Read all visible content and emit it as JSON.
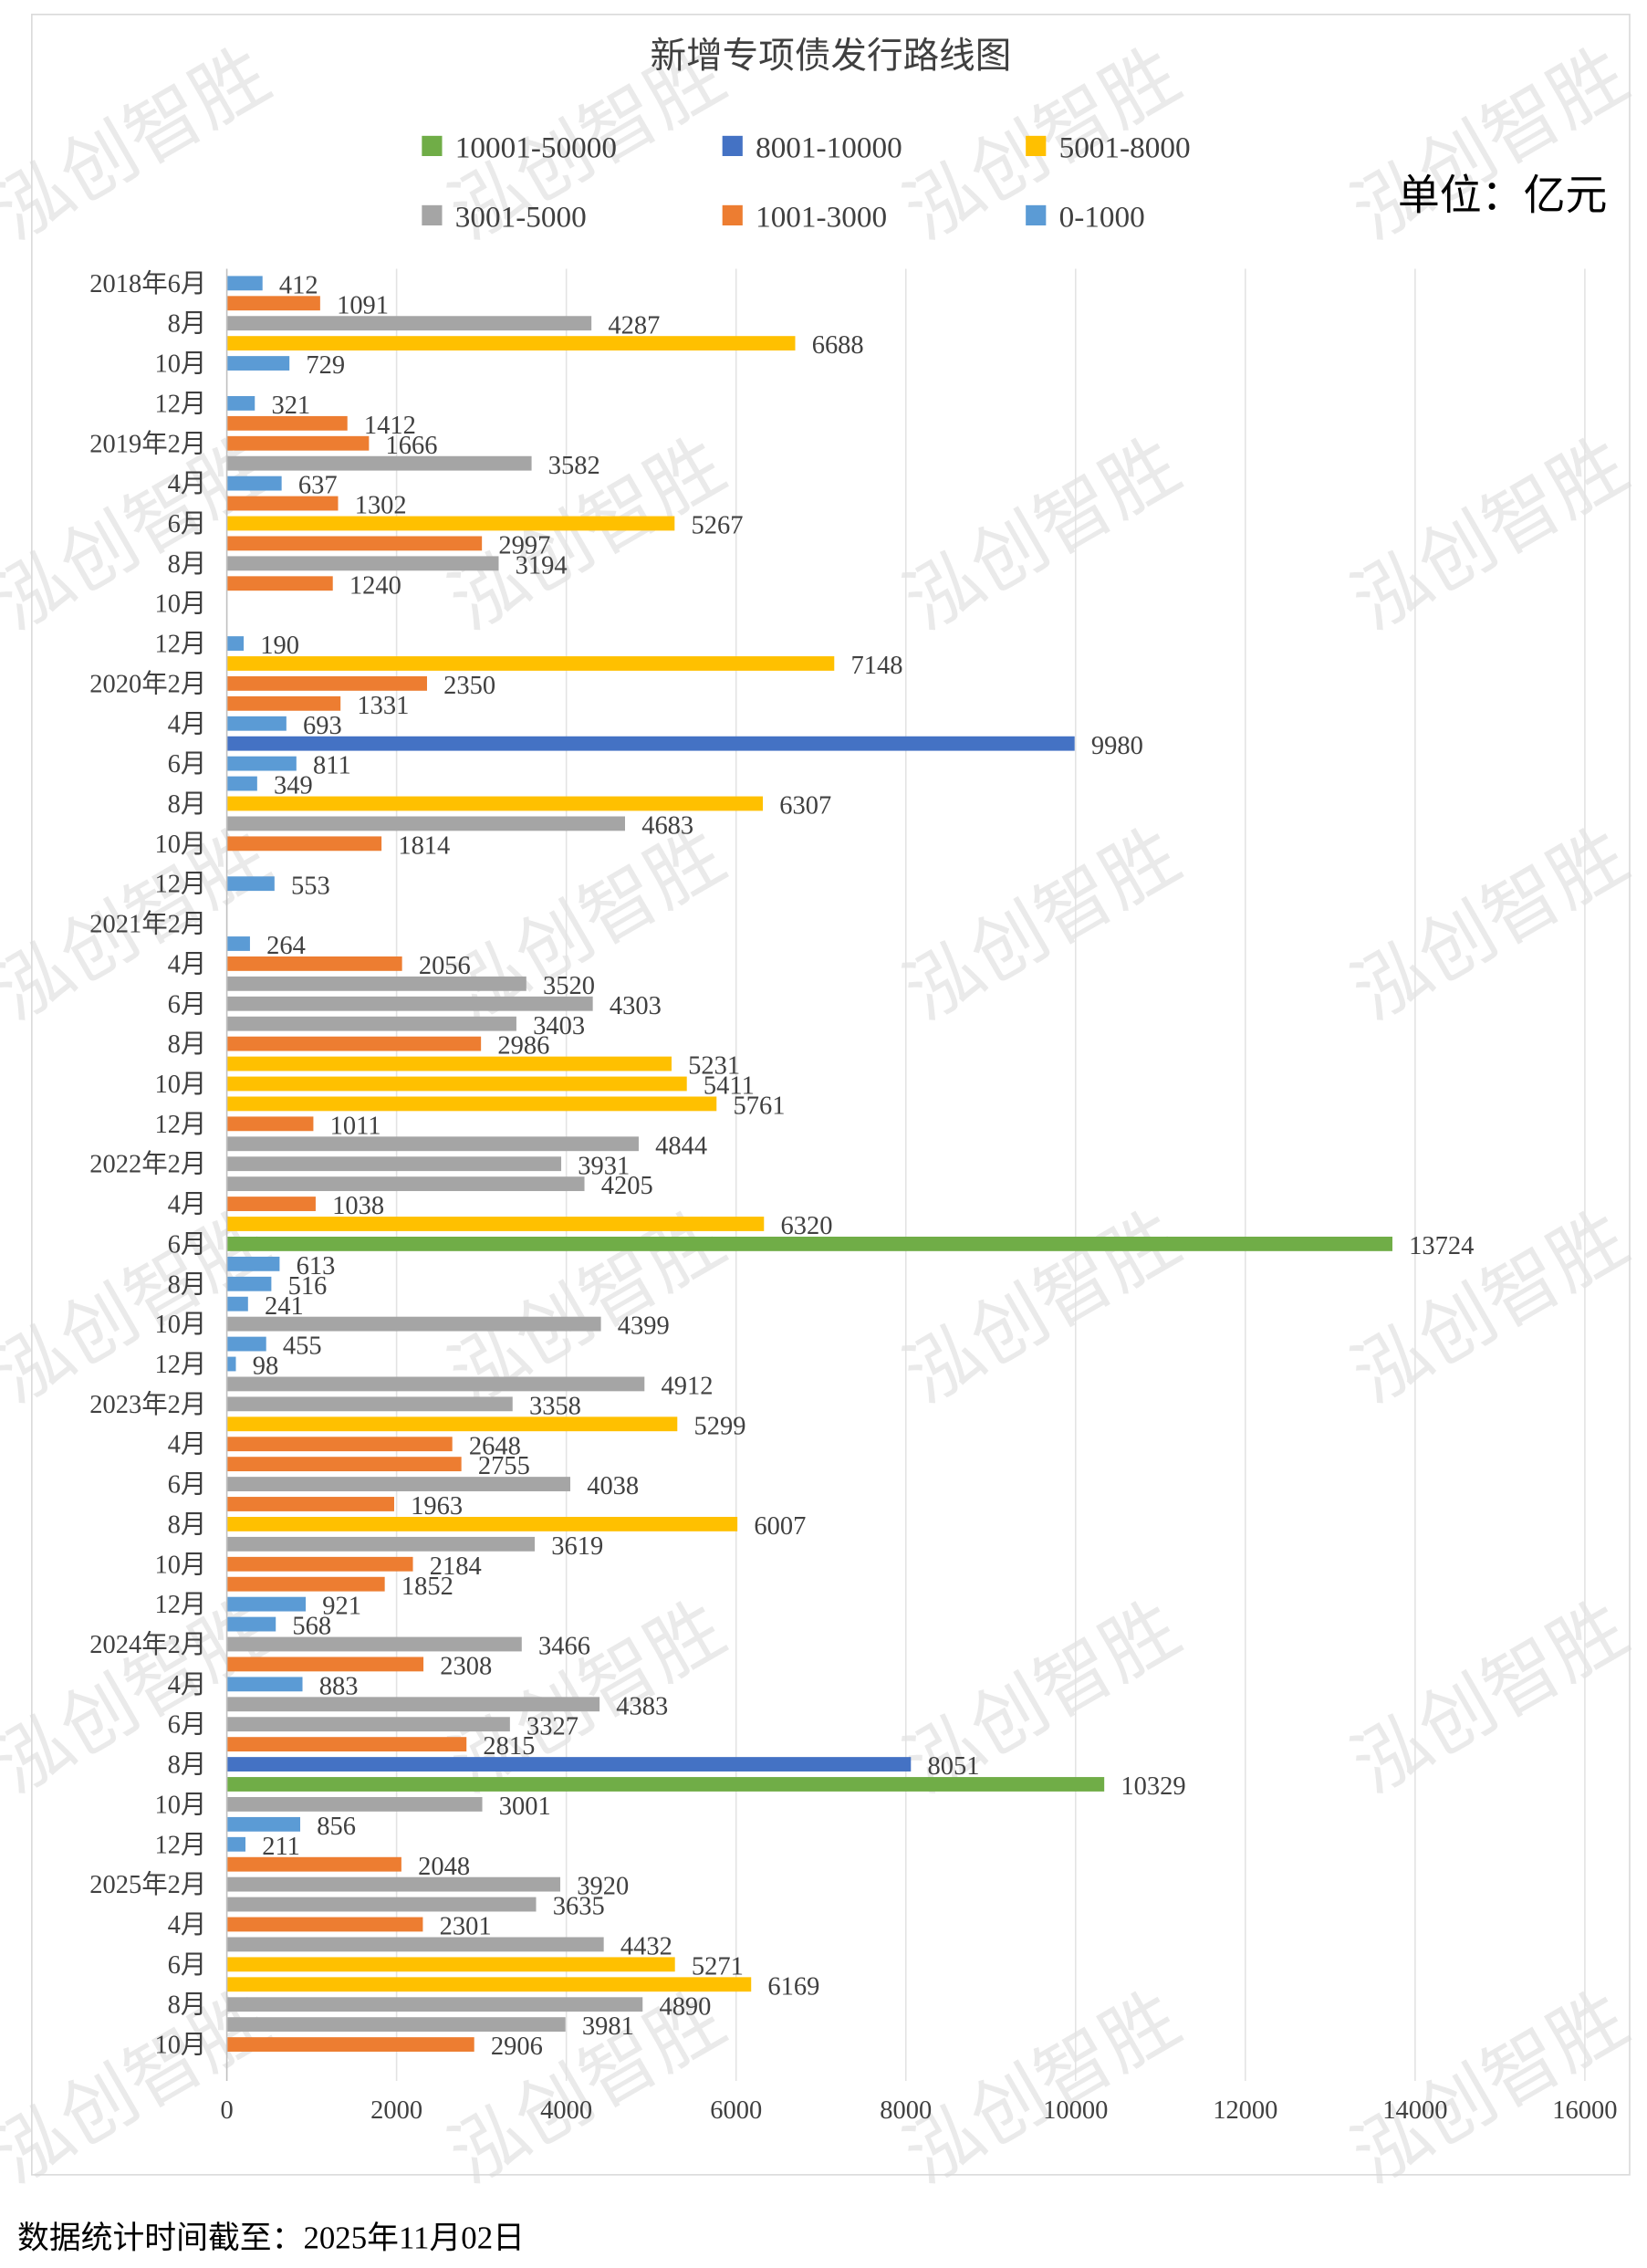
{
  "chart_data": {
    "type": "bar",
    "orientation": "horizontal",
    "title": "新增专项债发行路线图",
    "unit": "单位：亿元",
    "footer": "数据统计时间截至：2025年11月02日",
    "watermark": "泓创智胜",
    "xlim": [
      0,
      16000
    ],
    "x_ticks": [
      0,
      2000,
      4000,
      6000,
      8000,
      10000,
      12000,
      14000,
      16000
    ],
    "grid": true,
    "legend_position": "top",
    "legend": [
      {
        "label": "10001-50000",
        "min": 10001,
        "max": 50000,
        "color": "#70ad47"
      },
      {
        "label": "8001-10000",
        "min": 8001,
        "max": 10000,
        "color": "#4472c4"
      },
      {
        "label": "5001-8000",
        "min": 5001,
        "max": 8000,
        "color": "#ffc000"
      },
      {
        "label": "3001-5000",
        "min": 3001,
        "max": 5000,
        "color": "#a5a5a5"
      },
      {
        "label": "1001-3000",
        "min": 1001,
        "max": 3000,
        "color": "#ed7d31"
      },
      {
        "label": "0-1000",
        "min": 0,
        "max": 1000,
        "color": "#5b9bd5"
      }
    ],
    "y_tick_labels": [
      "2018年6月",
      "8月",
      "10月",
      "12月",
      "2019年2月",
      "4月",
      "6月",
      "8月",
      "10月",
      "12月",
      "2020年2月",
      "4月",
      "6月",
      "8月",
      "10月",
      "12月",
      "2021年2月",
      "4月",
      "6月",
      "8月",
      "10月",
      "12月",
      "2022年2月",
      "4月",
      "6月",
      "8月",
      "10月",
      "12月",
      "2023年2月",
      "4月",
      "6月",
      "8月",
      "10月",
      "12月",
      "2024年2月",
      "4月",
      "6月",
      "8月",
      "10月",
      "12月",
      "2025年2月",
      "4月",
      "6月",
      "8月",
      "10月"
    ],
    "values": [
      412,
      1091,
      4287,
      6688,
      729,
      null,
      321,
      1412,
      1666,
      3582,
      637,
      1302,
      5267,
      2997,
      3194,
      1240,
      null,
      null,
      190,
      7148,
      2350,
      1331,
      693,
      9980,
      811,
      349,
      6307,
      4683,
      1814,
      null,
      553,
      null,
      null,
      264,
      2056,
      3520,
      4303,
      3403,
      2986,
      5231,
      5411,
      5761,
      1011,
      4844,
      3931,
      4205,
      1038,
      6320,
      13724,
      613,
      516,
      241,
      4399,
      455,
      98,
      4912,
      3358,
      5299,
      2648,
      2755,
      4038,
      1963,
      6007,
      3619,
      2184,
      1852,
      921,
      568,
      3466,
      2308,
      883,
      4383,
      3327,
      2815,
      8051,
      10329,
      3001,
      856,
      211,
      2048,
      3920,
      3635,
      2301,
      4432,
      5271,
      6169,
      4890,
      3981,
      2906,
      null
    ]
  }
}
